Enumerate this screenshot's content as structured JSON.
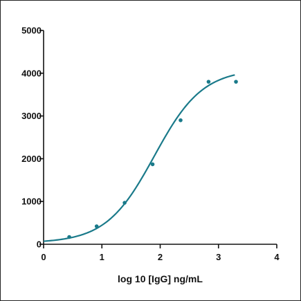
{
  "chart_data": {
    "type": "scatter",
    "title": "",
    "xlabel": "log 10 [IgG] ng/mL",
    "ylabel": "",
    "xlim": [
      0,
      4
    ],
    "ylim": [
      0,
      5000
    ],
    "x_ticks": [
      0,
      1,
      2,
      3,
      4
    ],
    "y_ticks": [
      0,
      1000,
      2000,
      3000,
      4000,
      5000
    ],
    "x_tick_labels": [
      "0",
      "1",
      "2",
      "3",
      "4"
    ],
    "y_tick_labels": [
      "0",
      "1000",
      "2000",
      "3000",
      "4000",
      "5000"
    ],
    "grid": false,
    "legend": "none",
    "points": [
      {
        "x": 0.44,
        "y": 170
      },
      {
        "x": 0.91,
        "y": 420
      },
      {
        "x": 1.39,
        "y": 970
      },
      {
        "x": 1.87,
        "y": 1870
      },
      {
        "x": 2.35,
        "y": 2900
      },
      {
        "x": 2.83,
        "y": 3800
      },
      {
        "x": 3.3,
        "y": 3800
      }
    ],
    "fit_curve": {
      "type": "four-parameter-logistic",
      "bottom": 30,
      "top": 4100,
      "log_ec50": 1.9,
      "hill_slope": 1.05,
      "x_range": [
        0,
        3.28
      ]
    },
    "colors": {
      "series": "#1a7a8a",
      "axis": "#111111"
    }
  }
}
